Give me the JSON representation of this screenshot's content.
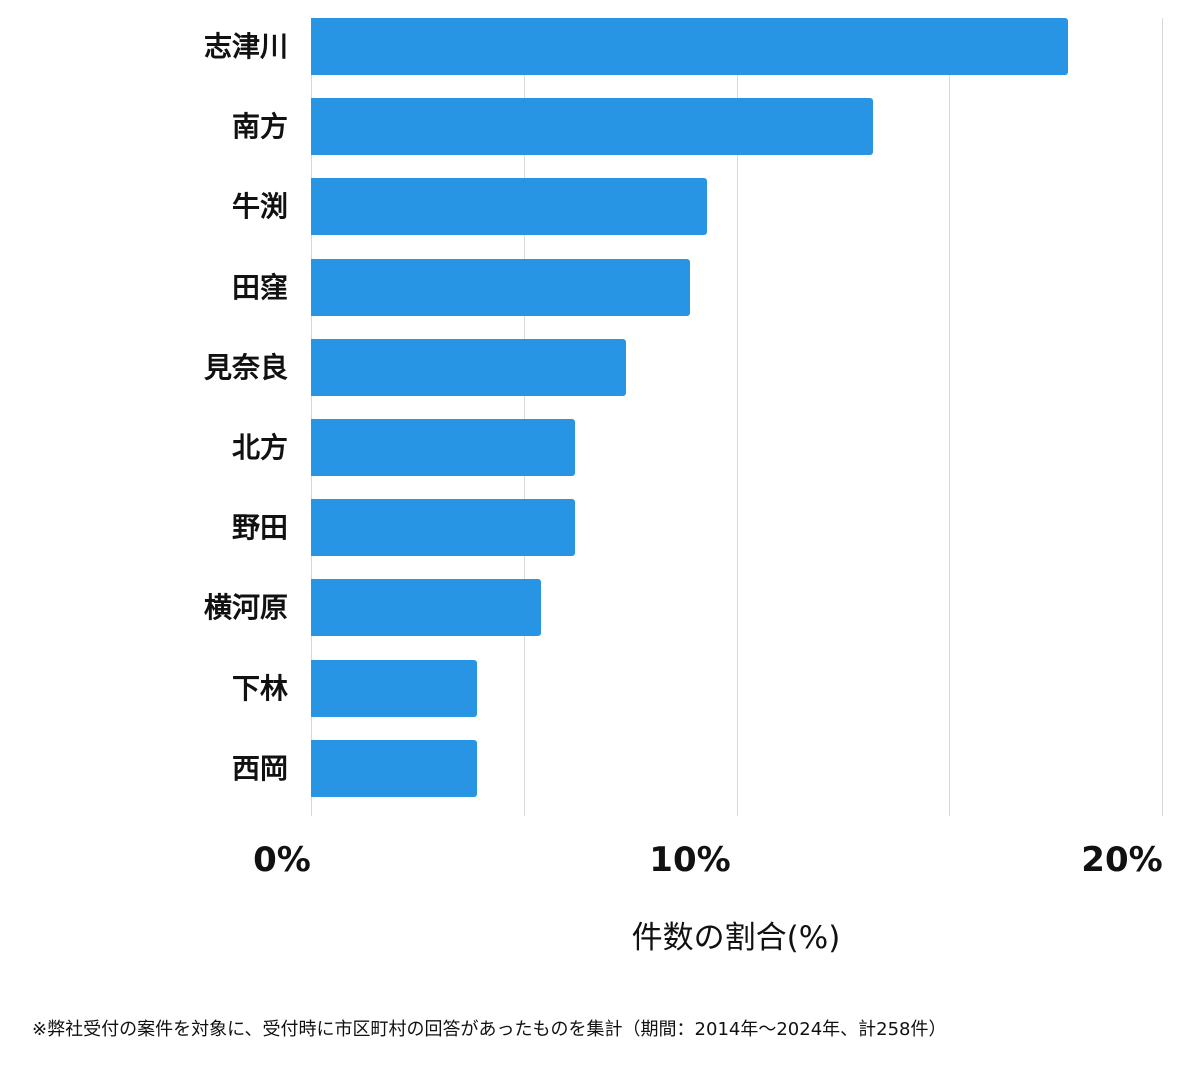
{
  "chart_data": {
    "type": "bar",
    "orientation": "horizontal",
    "title": "",
    "xlabel": "件数の割合(%)",
    "ylabel": "",
    "xlim": [
      0,
      20
    ],
    "x_ticks": [
      "0%",
      "10%",
      "20%"
    ],
    "gridlines_at": [
      0,
      5,
      10,
      15,
      20
    ],
    "grid": true,
    "legend": null,
    "bar_color": "#2794e4",
    "categories": [
      "志津川",
      "南方",
      "牛渕",
      "田窪",
      "見奈良",
      "北方",
      "野田",
      "横河原",
      "下林",
      "西岡"
    ],
    "values": [
      17.8,
      13.2,
      9.3,
      8.9,
      7.4,
      6.2,
      6.2,
      5.4,
      3.9,
      3.9
    ],
    "unit": "%",
    "footnote": "※弊社受付の案件を対象に、受付時に市区町村の回答があったものを集計（期間：2014年〜2024年、計258件）"
  }
}
